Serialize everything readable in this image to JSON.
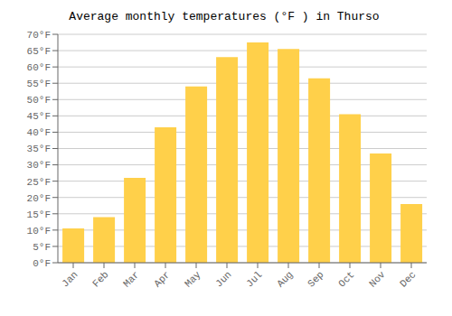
{
  "chart_data": {
    "type": "bar",
    "title": "Average monthly temperatures (°F ) in Thurso",
    "categories": [
      "Jan",
      "Feb",
      "Mar",
      "Apr",
      "May",
      "Jun",
      "Jul",
      "Aug",
      "Sep",
      "Oct",
      "Nov",
      "Dec"
    ],
    "values": [
      10.5,
      14.0,
      26.0,
      41.5,
      54.0,
      63.0,
      67.5,
      65.5,
      56.5,
      45.5,
      33.5,
      18.0
    ],
    "color": "#FFD04A",
    "ylim": [
      0,
      70
    ],
    "yticks": [
      {
        "value": 0,
        "label": "0°F"
      },
      {
        "value": 5,
        "label": "5°F"
      },
      {
        "value": 10,
        "label": "10°F"
      },
      {
        "value": 15,
        "label": "15°F"
      },
      {
        "value": 20,
        "label": "20°F"
      },
      {
        "value": 25,
        "label": "25°F"
      },
      {
        "value": 30,
        "label": "30°F"
      },
      {
        "value": 35,
        "label": "35°F"
      },
      {
        "value": 40,
        "label": "40°F"
      },
      {
        "value": 45,
        "label": "45°F"
      },
      {
        "value": 50,
        "label": "50°F"
      },
      {
        "value": 55,
        "label": "55°F"
      },
      {
        "value": 60,
        "label": "60°F"
      },
      {
        "value": 65,
        "label": "65°F"
      },
      {
        "value": 70,
        "label": "70°F"
      }
    ],
    "grid": true
  }
}
